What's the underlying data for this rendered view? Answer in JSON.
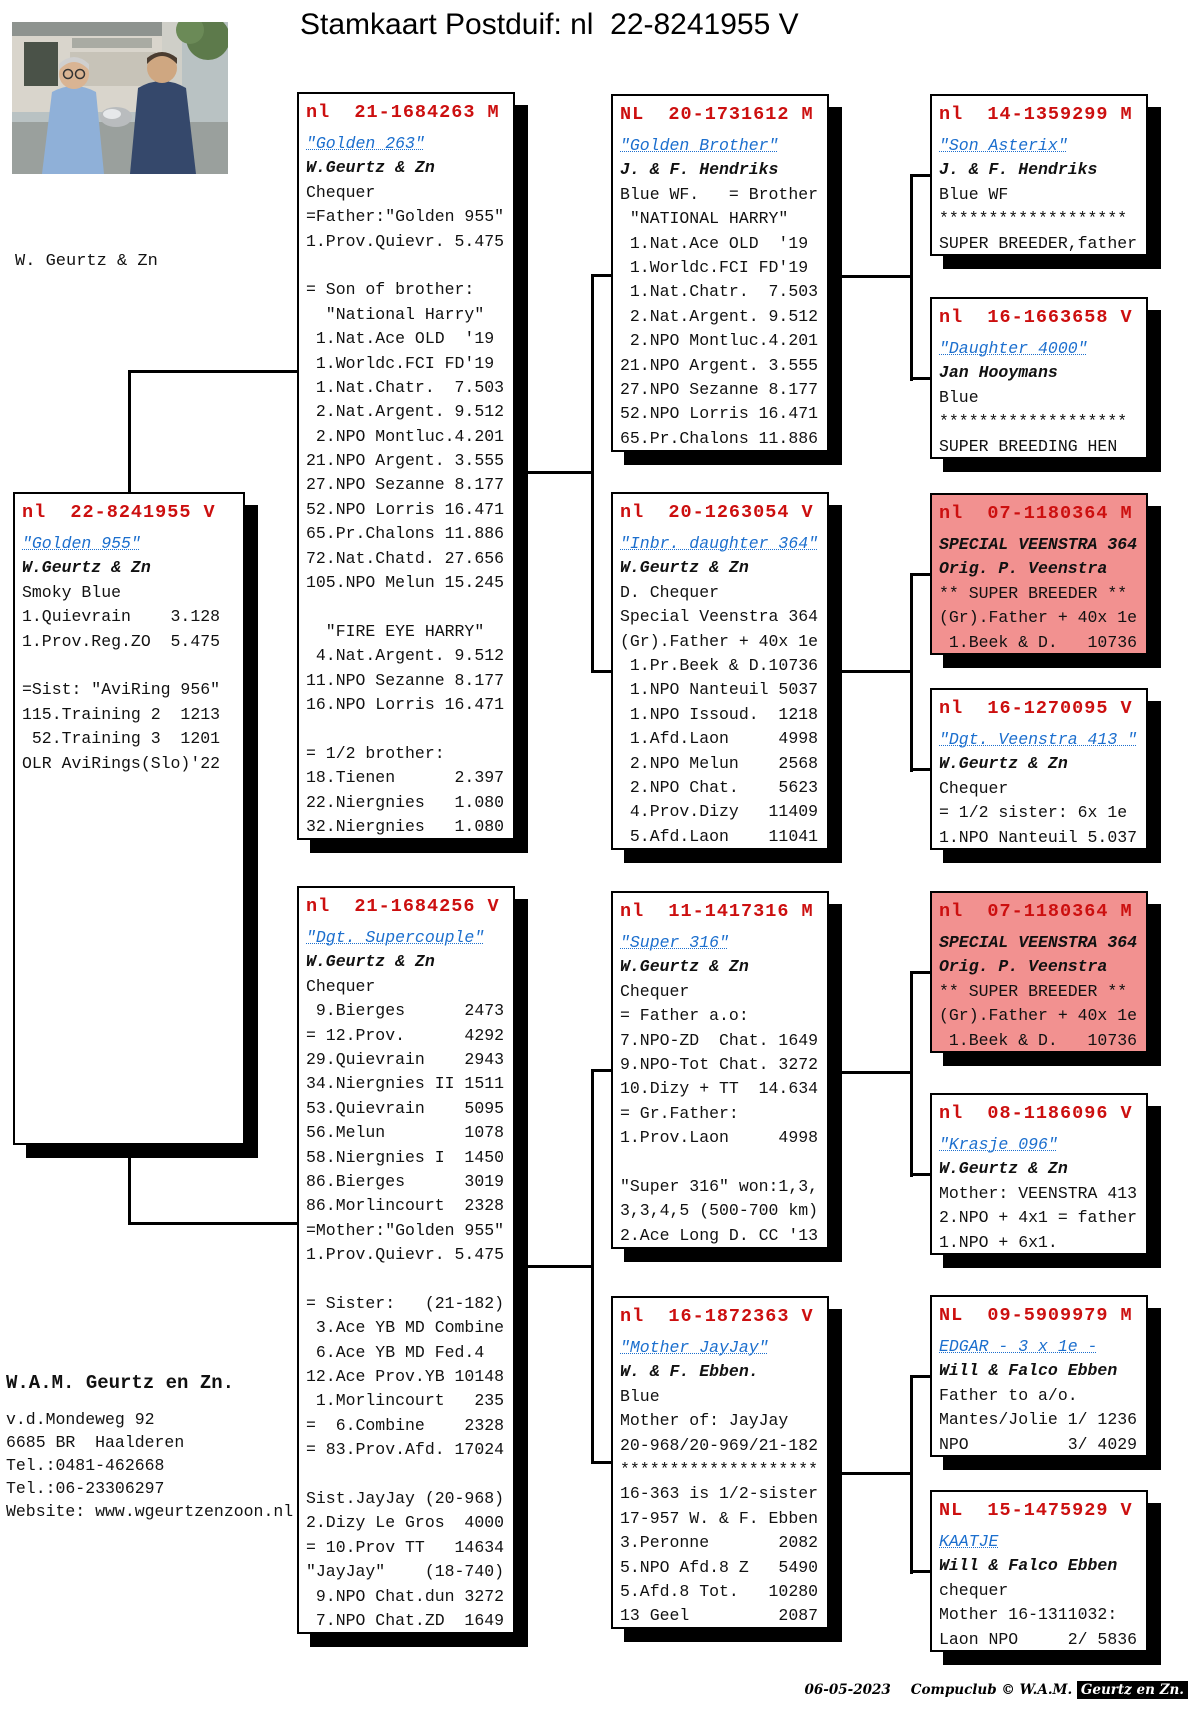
{
  "title": "Stamkaart Postduif: nl  22-8241955 V",
  "photo": {
    "caption": "W. Geurtz & Zn"
  },
  "colors": {
    "ring_red": "#cc0f0f",
    "name_blue": "#1c6fce",
    "highlight_pink": "#f29190"
  },
  "boxes": [
    {
      "id": "subject",
      "pink": false,
      "lines": [
        [
          "r",
          "nl  22-8241955 V"
        ],
        [
          "n",
          "\"Golden 955\""
        ],
        [
          "o",
          "W.Geurtz & Zn"
        ],
        [
          "",
          "Smoky Blue"
        ],
        [
          "",
          "1.Quievrain    3.128"
        ],
        [
          "",
          "1.Prov.Reg.ZO  5.475"
        ],
        [
          "",
          ""
        ],
        [
          "",
          "=Sist: \"AviRing 956\""
        ],
        [
          "",
          "115.Training 2  1213"
        ],
        [
          "",
          " 52.Training 3  1201"
        ],
        [
          "",
          "OLR AviRings(Slo)'22"
        ]
      ]
    },
    {
      "id": "father",
      "pink": false,
      "lines": [
        [
          "r",
          "nl  21-1684263 M"
        ],
        [
          "n",
          "\"Golden 263\""
        ],
        [
          "o",
          "W.Geurtz & Zn"
        ],
        [
          "",
          "Chequer"
        ],
        [
          "",
          "=Father:\"Golden 955\""
        ],
        [
          "",
          "1.Prov.Quievr. 5.475"
        ],
        [
          "",
          ""
        ],
        [
          "",
          "= Son of brother:"
        ],
        [
          "",
          "  \"National Harry\""
        ],
        [
          "",
          " 1.Nat.Ace OLD  '19"
        ],
        [
          "",
          " 1.Worldc.FCI FD'19"
        ],
        [
          "",
          " 1.Nat.Chatr.  7.503"
        ],
        [
          "",
          " 2.Nat.Argent. 9.512"
        ],
        [
          "",
          " 2.NPO Montluc.4.201"
        ],
        [
          "",
          "21.NPO Argent. 3.555"
        ],
        [
          "",
          "27.NPO Sezanne 8.177"
        ],
        [
          "",
          "52.NPO Lorris 16.471"
        ],
        [
          "",
          "65.Pr.Chalons 11.886"
        ],
        [
          "",
          "72.Nat.Chatd. 27.656"
        ],
        [
          "",
          "105.NPO Melun 15.245"
        ],
        [
          "",
          ""
        ],
        [
          "",
          "  \"FIRE EYE HARRY\""
        ],
        [
          "",
          " 4.Nat.Argent. 9.512"
        ],
        [
          "",
          "11.NPO Sezanne 8.177"
        ],
        [
          "",
          "16.NPO Lorris 16.471"
        ],
        [
          "",
          ""
        ],
        [
          "",
          "= 1/2 brother:"
        ],
        [
          "",
          "18.Tienen      2.397"
        ],
        [
          "",
          "22.Niergnies   1.080"
        ],
        [
          "",
          "32.Niergnies   1.080"
        ]
      ]
    },
    {
      "id": "mother",
      "pink": false,
      "lines": [
        [
          "r",
          "nl  21-1684256 V"
        ],
        [
          "n",
          "\"Dgt. Supercouple\""
        ],
        [
          "o",
          "W.Geurtz & Zn"
        ],
        [
          "",
          "Chequer"
        ],
        [
          "",
          " 9.Bierges      2473"
        ],
        [
          "",
          "= 12.Prov.      4292"
        ],
        [
          "",
          "29.Quievrain    2943"
        ],
        [
          "",
          "34.Niergnies II 1511"
        ],
        [
          "",
          "53.Quievrain    5095"
        ],
        [
          "",
          "56.Melun        1078"
        ],
        [
          "",
          "58.Niergnies I  1450"
        ],
        [
          "",
          "86.Bierges      3019"
        ],
        [
          "",
          "86.Morlincourt  2328"
        ],
        [
          "",
          "=Mother:\"Golden 955\""
        ],
        [
          "",
          "1.Prov.Quievr. 5.475"
        ],
        [
          "",
          ""
        ],
        [
          "",
          "= Sister:   (21-182)"
        ],
        [
          "",
          " 3.Ace YB MD Combine"
        ],
        [
          "",
          " 6.Ace YB MD Fed.4"
        ],
        [
          "",
          "12.Ace Prov.YB 10148"
        ],
        [
          "",
          " 1.Morlincourt   235"
        ],
        [
          "",
          "=  6.Combine    2328"
        ],
        [
          "",
          "= 83.Prov.Afd. 17024"
        ],
        [
          "",
          ""
        ],
        [
          "",
          "Sist.JayJay (20-968)"
        ],
        [
          "",
          "2.Dizy Le Gros  4000"
        ],
        [
          "",
          "= 10.Prov TT   14634"
        ],
        [
          "",
          "\"JayJay\"    (18-740)"
        ],
        [
          "",
          " 9.NPO Chat.dun 3272"
        ],
        [
          "",
          " 7.NPO Chat.ZD  1649"
        ]
      ]
    },
    {
      "id": "gp1",
      "pink": false,
      "lines": [
        [
          "r",
          "NL  20-1731612 M"
        ],
        [
          "n",
          "\"Golden Brother\""
        ],
        [
          "o",
          "J. & F. Hendriks"
        ],
        [
          "",
          "Blue WF.   = Brother"
        ],
        [
          "",
          " \"NATIONAL HARRY\""
        ],
        [
          "",
          " 1.Nat.Ace OLD  '19"
        ],
        [
          "",
          " 1.Worldc.FCI FD'19"
        ],
        [
          "",
          " 1.Nat.Chatr.  7.503"
        ],
        [
          "",
          " 2.Nat.Argent. 9.512"
        ],
        [
          "",
          " 2.NPO Montluc.4.201"
        ],
        [
          "",
          "21.NPO Argent. 3.555"
        ],
        [
          "",
          "27.NPO Sezanne 8.177"
        ],
        [
          "",
          "52.NPO Lorris 16.471"
        ],
        [
          "",
          "65.Pr.Chalons 11.886"
        ]
      ]
    },
    {
      "id": "gp2",
      "pink": false,
      "lines": [
        [
          "r",
          "nl  20-1263054 V"
        ],
        [
          "n",
          "\"Inbr. daughter 364\""
        ],
        [
          "o",
          "W.Geurtz & Zn"
        ],
        [
          "",
          "D. Chequer"
        ],
        [
          "",
          "Special Veenstra 364"
        ],
        [
          "",
          "(Gr).Father + 40x 1e"
        ],
        [
          "",
          " 1.Pr.Beek & D.10736"
        ],
        [
          "",
          " 1.NPO Nanteuil 5037"
        ],
        [
          "",
          " 1.NPO Issoud.  1218"
        ],
        [
          "",
          " 1.Afd.Laon     4998"
        ],
        [
          "",
          " 2.NPO Melun    2568"
        ],
        [
          "",
          " 2.NPO Chat.    5623"
        ],
        [
          "",
          " 4.Prov.Dizy   11409"
        ],
        [
          "",
          " 5.Afd.Laon    11041"
        ]
      ]
    },
    {
      "id": "gp3",
      "pink": false,
      "lines": [
        [
          "r",
          "nl  11-1417316 M"
        ],
        [
          "n",
          "\"Super 316\""
        ],
        [
          "o",
          "W.Geurtz & Zn"
        ],
        [
          "",
          "Chequer"
        ],
        [
          "",
          "= Father a.o:"
        ],
        [
          "",
          "7.NPO-ZD  Chat. 1649"
        ],
        [
          "",
          "9.NPO-Tot Chat. 3272"
        ],
        [
          "",
          "10.Dizy + TT  14.634"
        ],
        [
          "",
          "= Gr.Father:"
        ],
        [
          "",
          "1.Prov.Laon     4998"
        ],
        [
          "",
          ""
        ],
        [
          "",
          "\"Super 316\" won:1,3,"
        ],
        [
          "",
          "3,3,4,5 (500-700 km)"
        ],
        [
          "",
          "2.Ace Long D. CC '13"
        ]
      ]
    },
    {
      "id": "gp4",
      "pink": false,
      "lines": [
        [
          "r",
          "nl  16-1872363 V"
        ],
        [
          "n",
          "\"Mother JayJay\""
        ],
        [
          "o",
          "W. & F. Ebben."
        ],
        [
          "",
          "Blue"
        ],
        [
          "",
          "Mother of: JayJay"
        ],
        [
          "",
          "20-968/20-969/21-182"
        ],
        [
          "",
          "********************"
        ],
        [
          "",
          "16-363 is 1/2-sister"
        ],
        [
          "",
          "17-957 W. & F. Ebben"
        ],
        [
          "",
          "3.Peronne       2082"
        ],
        [
          "",
          "5.NPO Afd.8 Z   5490"
        ],
        [
          "",
          "5.Afd.8 Tot.   10280"
        ],
        [
          "",
          "13 Geel         2087"
        ]
      ]
    },
    {
      "id": "ggp1",
      "pink": false,
      "lines": [
        [
          "r",
          "nl  14-1359299 M"
        ],
        [
          "n",
          "\"Son Asterix\""
        ],
        [
          "o",
          "J. & F. Hendriks"
        ],
        [
          "",
          "Blue WF"
        ],
        [
          "",
          "*******************"
        ],
        [
          "",
          "SUPER BREEDER,father"
        ]
      ]
    },
    {
      "id": "ggp2",
      "pink": false,
      "lines": [
        [
          "r",
          "nl  16-1663658 V"
        ],
        [
          "n",
          "\"Daughter 4000\""
        ],
        [
          "o",
          "Jan Hooymans"
        ],
        [
          "",
          "Blue"
        ],
        [
          "",
          "*******************"
        ],
        [
          "",
          "SUPER BREEDING HEN"
        ]
      ]
    },
    {
      "id": "ggp3",
      "pink": true,
      "lines": [
        [
          "r",
          "nl  07-1180364 M"
        ],
        [
          "e",
          "SPECIAL VEENSTRA 364"
        ],
        [
          "e",
          "Orig. P. Veenstra"
        ],
        [
          "",
          "** SUPER BREEDER **"
        ],
        [
          "",
          "(Gr).Father + 40x 1e"
        ],
        [
          "",
          " 1.Beek & D.   10736"
        ]
      ]
    },
    {
      "id": "ggp4",
      "pink": false,
      "lines": [
        [
          "r",
          "nl  16-1270095 V"
        ],
        [
          "n",
          "\"Dgt. Veenstra 413 \""
        ],
        [
          "o",
          "W.Geurtz & Zn"
        ],
        [
          "",
          "Chequer"
        ],
        [
          "",
          "= 1/2 sister: 6x 1e"
        ],
        [
          "",
          "1.NPO Nanteuil 5.037"
        ]
      ]
    },
    {
      "id": "ggp5",
      "pink": true,
      "lines": [
        [
          "r",
          "nl  07-1180364 M"
        ],
        [
          "e",
          "SPECIAL VEENSTRA 364"
        ],
        [
          "e",
          "Orig. P. Veenstra"
        ],
        [
          "",
          "** SUPER BREEDER **"
        ],
        [
          "",
          "(Gr).Father + 40x 1e"
        ],
        [
          "",
          " 1.Beek & D.   10736"
        ]
      ]
    },
    {
      "id": "ggp6",
      "pink": false,
      "lines": [
        [
          "r",
          "nl  08-1186096 V"
        ],
        [
          "n",
          "\"Krasje 096\""
        ],
        [
          "o",
          "W.Geurtz & Zn"
        ],
        [
          "",
          "Mother: VEENSTRA 413"
        ],
        [
          "",
          "2.NPO + 4x1 = father"
        ],
        [
          "",
          "1.NPO + 6x1."
        ]
      ]
    },
    {
      "id": "ggp7",
      "pink": false,
      "lines": [
        [
          "r",
          "NL  09-5909979 M"
        ],
        [
          "n",
          "EDGAR - 3 x 1e -"
        ],
        [
          "o",
          "Will & Falco Ebben"
        ],
        [
          "",
          "Father to a/o."
        ],
        [
          "",
          "Mantes/Jolie 1/ 1236"
        ],
        [
          "",
          "NPO          3/ 4029"
        ]
      ]
    },
    {
      "id": "ggp8",
      "pink": false,
      "lines": [
        [
          "r",
          "NL  15-1475929 V"
        ],
        [
          "n",
          "KAATJE"
        ],
        [
          "o",
          "Will & Falco Ebben"
        ],
        [
          "",
          "chequer"
        ],
        [
          "",
          "Mother 16-1311032:"
        ],
        [
          "",
          "Laon NPO     2/ 5836"
        ]
      ]
    }
  ],
  "contact": {
    "name": "W.A.M. Geurtz en Zn.",
    "lines": [
      "v.d.Mondeweg 92",
      "6685 BR  Haalderen",
      "Tel.:0481-462668",
      "Tel.:06-23306297",
      "Website: www.wgeurtzenzoon.nl"
    ]
  },
  "footer": {
    "date": "06-05-2023",
    "credit": "Compuclub © W.A.M.",
    "credit_highlight": "Geurtz en Zn."
  }
}
